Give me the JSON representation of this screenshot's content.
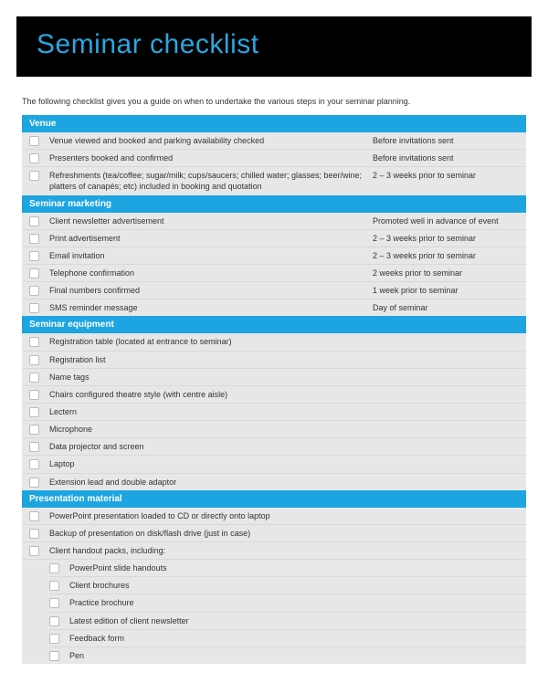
{
  "colors": {
    "header_bg": "#000000",
    "title_color": "#2aa6e0",
    "section_bg": "#1ca5e0",
    "rows_bg": "#e7e7e7",
    "text": "#333333"
  },
  "title": "Seminar checklist",
  "intro": "The following checklist gives you a guide on when to undertake the various steps in your seminar planning.",
  "sections": [
    {
      "title": "Venue",
      "items": [
        {
          "text": "Venue viewed and booked and parking availability checked",
          "timing": "Before invitations sent"
        },
        {
          "text": "Presenters booked and confirmed",
          "timing": "Before invitations sent"
        },
        {
          "text": "Refreshments (tea/coffee; sugar/milk; cups/saucers; chilled water; glasses; beer/wine; platters of canapés; etc) included in booking and quotation",
          "timing": "2 – 3 weeks prior to seminar"
        }
      ]
    },
    {
      "title": "Seminar marketing",
      "items": [
        {
          "text": "Client newsletter advertisement",
          "timing": "Promoted well in advance of event"
        },
        {
          "text": "Print advertisement",
          "timing": "2 – 3 weeks prior to seminar"
        },
        {
          "text": "Email invitation",
          "timing": "2 – 3 weeks prior to seminar"
        },
        {
          "text": "Telephone confirmation",
          "timing": "2 weeks prior to seminar"
        },
        {
          "text": "Final numbers confirmed",
          "timing": "1 week prior to seminar"
        },
        {
          "text": "SMS reminder message",
          "timing": "Day of seminar"
        }
      ]
    },
    {
      "title": "Seminar equipment",
      "items": [
        {
          "text": "Registration table (located at entrance to seminar)",
          "timing": ""
        },
        {
          "text": "Registration list",
          "timing": ""
        },
        {
          "text": "Name tags",
          "timing": ""
        },
        {
          "text": "Chairs configured theatre style (with centre aisle)",
          "timing": ""
        },
        {
          "text": "Lectern",
          "timing": ""
        },
        {
          "text": "Microphone",
          "timing": ""
        },
        {
          "text": "Data projector and screen",
          "timing": ""
        },
        {
          "text": "Laptop",
          "timing": ""
        },
        {
          "text": "Extension lead and double adaptor",
          "timing": ""
        }
      ]
    },
    {
      "title": "Presentation material",
      "items": [
        {
          "text": "PowerPoint presentation loaded to CD or directly onto laptop",
          "timing": ""
        },
        {
          "text": "Backup of presentation on disk/flash drive (just in case)",
          "timing": ""
        },
        {
          "text": "Client handout packs, including:",
          "timing": "",
          "subitems": [
            {
              "text": "PowerPoint slide handouts"
            },
            {
              "text": "Client brochures"
            },
            {
              "text": "Practice brochure"
            },
            {
              "text": "Latest edition of client newsletter"
            },
            {
              "text": "Feedback form"
            },
            {
              "text": "Pen"
            }
          ]
        }
      ]
    }
  ]
}
